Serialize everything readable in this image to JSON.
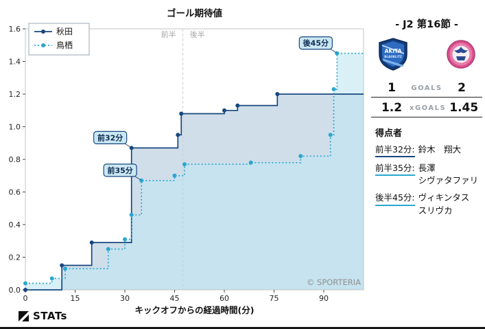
{
  "chart_data": {
    "type": "line",
    "subtype": "step-after",
    "title": "ゴール期待値",
    "xlabel": "キックオフからの経過時間(分)",
    "ylabel": "",
    "x_ticks": [
      0,
      15,
      30,
      45,
      60,
      75,
      90
    ],
    "x_max": 102,
    "y_ticks": [
      0,
      0.2,
      0.4,
      0.6,
      0.8,
      1,
      1.2,
      1.4,
      1.6
    ],
    "ylim": [
      0,
      1.6
    ],
    "grid": false,
    "legend_position": "top-left",
    "half_divider": {
      "x": 47.5,
      "label_first_half": "前半",
      "label_second_half": "後半"
    },
    "watermark": "© SPORTERIA",
    "series": [
      {
        "name": "秋田",
        "color": "#17477e",
        "fill": "#a9c2d8",
        "fill_opacity": 0.55,
        "style": "solid",
        "points": [
          [
            0,
            0
          ],
          [
            11,
            0.15
          ],
          [
            20,
            0.29
          ],
          [
            32,
            0.87
          ],
          [
            46,
            0.95
          ],
          [
            47,
            1.08
          ],
          [
            60,
            1.1
          ],
          [
            64,
            1.13
          ],
          [
            76,
            1.2
          ]
        ]
      },
      {
        "name": "鳥栖",
        "color": "#2aa7cf",
        "fill": "#bfe6f2",
        "fill_opacity": 0.6,
        "style": "dotted",
        "points": [
          [
            0,
            0.04
          ],
          [
            8,
            0.07
          ],
          [
            12,
            0.13
          ],
          [
            25,
            0.25
          ],
          [
            30,
            0.31
          ],
          [
            32,
            0.46
          ],
          [
            35,
            0.67
          ],
          [
            45,
            0.7
          ],
          [
            48,
            0.77
          ],
          [
            68,
            0.78
          ],
          [
            83,
            0.82
          ],
          [
            92,
            0.95
          ],
          [
            93,
            1.23
          ],
          [
            94,
            1.45
          ]
        ]
      }
    ],
    "annotations": [
      {
        "label": "前32分",
        "x": 32,
        "y": 0.87
      },
      {
        "label": "前35分",
        "x": 35,
        "y": 0.67
      },
      {
        "label": "後45分",
        "x": 94,
        "y": 1.45
      }
    ]
  },
  "side_panel": {
    "title": "- J2 第16節 -",
    "teams": [
      {
        "name": "秋田",
        "logo_text": "AKITA",
        "logo_subtext": "BLAUBLITZ",
        "color": "#17477e"
      },
      {
        "name": "鳥栖",
        "color": "#2aa7cf"
      }
    ],
    "goals": {
      "home": "1",
      "label": "GOALS",
      "away": "2"
    },
    "xgoals": {
      "home": "1.2",
      "label": "xGOALS",
      "away": "1.45"
    },
    "scorers": {
      "heading": "得点者",
      "items": [
        {
          "time": "前半32分:",
          "name_lines": [
            "鈴木　翔大"
          ],
          "color": "#17477e"
        },
        {
          "time": "前半35分:",
          "name_lines": [
            "長澤",
            "シヴァタファリ"
          ],
          "color": "#2aa7cf"
        },
        {
          "time": "後半45分:",
          "name_lines": [
            "ヴィキンタス",
            "スリヴカ"
          ],
          "color": "#2aa7cf"
        }
      ]
    }
  },
  "footer": {
    "brand": "STATs"
  }
}
